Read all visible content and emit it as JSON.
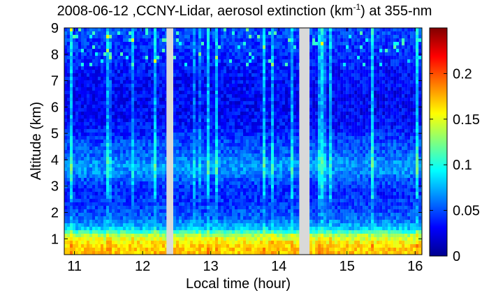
{
  "chart_data": {
    "type": "heatmap",
    "title": {
      "prefix": "2008-06-12 ,CCNY-Lidar, aerosol extinction (km",
      "superscript": "-1",
      "suffix": ") at 355-nm"
    },
    "xlabel": "Local time (hour)",
    "ylabel": "Altitude (km)",
    "xlim": [
      10.85,
      16.1
    ],
    "ylim": [
      0.4,
      9
    ],
    "x_ticks": [
      "11",
      "12",
      "13",
      "14",
      "15",
      "16"
    ],
    "y_ticks": [
      "1",
      "2",
      "3",
      "4",
      "5",
      "6",
      "7",
      "8",
      "9"
    ],
    "segments": [
      [
        10.85,
        12.35
      ],
      [
        12.45,
        14.3
      ],
      [
        14.45,
        16.1
      ]
    ],
    "colorbar": {
      "range": [
        0,
        0.25
      ],
      "ticks": [
        "0",
        "0.05",
        "0.1",
        "0.15",
        "0.2"
      ],
      "colormap": "jet"
    },
    "profile": {
      "altitude_km": [
        0.5,
        0.8,
        1.1,
        1.4,
        1.8,
        2.3,
        2.8,
        3.2,
        3.5,
        3.8,
        4.2,
        4.6,
        5.2,
        6.0,
        7.0,
        8.0,
        9.0
      ],
      "extinction": [
        0.17,
        0.165,
        0.14,
        0.08,
        0.055,
        0.045,
        0.04,
        0.05,
        0.065,
        0.07,
        0.055,
        0.05,
        0.035,
        0.03,
        0.032,
        0.04,
        0.05
      ]
    }
  }
}
